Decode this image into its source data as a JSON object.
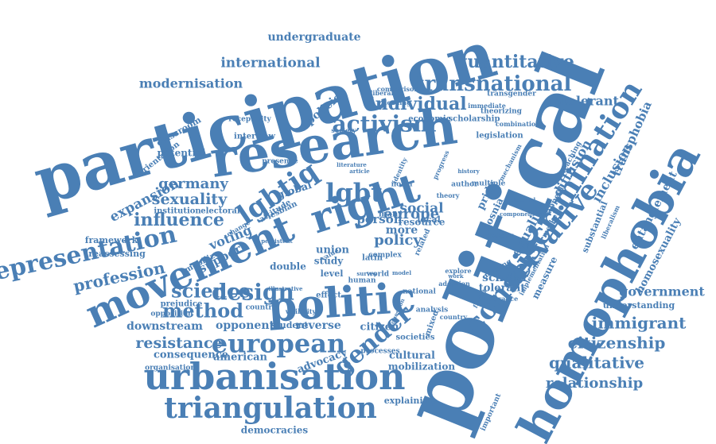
{
  "word_color": "#4a7fb5",
  "background_color": "#ffffff",
  "words": [
    "participation",
    "political",
    "research",
    "homophobia",
    "right",
    "politic",
    "movement",
    "urbanisation",
    "triangulation",
    "representation",
    "discrimination",
    "conservative",
    "european",
    "lgbtiq",
    "lgbt",
    "design",
    "activism",
    "transnational",
    "quantitative",
    "gender",
    "method",
    "science",
    "individual",
    "qualitative",
    "immigrant",
    "citizenship",
    "relationship",
    "government",
    "influence",
    "profession",
    "resistance",
    "sexuality",
    "germany",
    "expansion",
    "modernisation",
    "international",
    "undergraduate",
    "intolerant",
    "europe",
    "transphobia",
    "homosexuality",
    "equality",
    "diffusion",
    "inclusion",
    "entanglement",
    "policy",
    "policies",
    "social",
    "voting",
    "support",
    "downstream",
    "opponent",
    "reverse",
    "citizen",
    "consequence",
    "american",
    "advocacy",
    "cultural",
    "mobilization",
    "democracies",
    "explaining",
    "person",
    "more",
    "scholar",
    "tolerant",
    "measure",
    "bosnia",
    "pride",
    "understanding",
    "framework",
    "reassessing",
    "potential",
    "classroom",
    "orientation",
    "interview",
    "presence",
    "receptivity",
    "scholarship",
    "economic",
    "legislation",
    "theorizing",
    "transgender",
    "comparison",
    "liberal",
    "union",
    "global",
    "study",
    "level",
    "double",
    "mobilize",
    "prejudice",
    "opposition",
    "countrie",
    "student",
    "processes",
    "societies",
    "organisation",
    "effect",
    "latin",
    "human",
    "world",
    "mixed",
    "analysis",
    "tolerance",
    "adoption",
    "national",
    "resource",
    "local",
    "many",
    "norm",
    "author",
    "theory",
    "deeper",
    "making",
    "appeal",
    "merkel",
    "teaching",
    "mechanism",
    "combination",
    "immediate",
    "important",
    "implementation",
    "substantial",
    "liberalism",
    "component",
    "bisexual",
    "multiple",
    "institution",
    "electoral",
    "lesbian",
    "attitude",
    "change",
    "persistent",
    "illustrative",
    "visibility",
    "society",
    "literature",
    "identity",
    "progress",
    "country",
    "question",
    "history",
    "leading",
    "explore",
    "work",
    "model",
    "survey",
    "related",
    "factor",
    "article",
    "complex",
    "value",
    "data",
    "time"
  ]
}
